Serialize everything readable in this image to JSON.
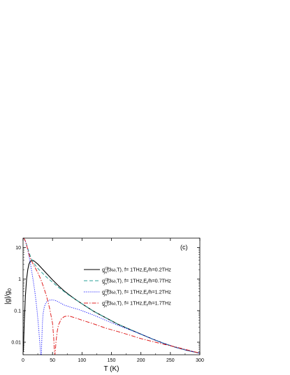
{
  "chart_data": {
    "type": "line",
    "panel_label": "(c)",
    "xlabel": "T (K)",
    "ylabel": "|g|/g",
    "ylabel_sub": "0",
    "xlim": [
      0,
      300
    ],
    "ylim": [
      0.004,
      20
    ],
    "yscale": "log",
    "grid": false,
    "legend_position": "right",
    "x_ticks": [
      0,
      50,
      100,
      150,
      200,
      250,
      300
    ],
    "x_tick_labels": [
      "0",
      "50",
      "100",
      "150",
      "200",
      "250",
      "300"
    ],
    "y_ticks": [
      0.01,
      0.1,
      1,
      10
    ],
    "y_tick_labels": [
      "0.01",
      "0.1",
      "1",
      "10"
    ],
    "series": [
      {
        "name": "g_yx^(3)(3ω,T), f= 1THz,E_f/h=0.2THz",
        "legend": {
          "g": "g",
          "sup": "(3)",
          "sub": "yx",
          "arg": "(3ω,T), f= 1THz,E",
          "sub2": "f",
          "tail": "/h=0.2THz"
        },
        "color": "#000000",
        "dash": "",
        "x": [
          0.5,
          2,
          4,
          6,
          8,
          10,
          12,
          14,
          16,
          18,
          20,
          25,
          30,
          40,
          50,
          60,
          70,
          80,
          90,
          100,
          120,
          140,
          160,
          180,
          200,
          220,
          240,
          260,
          280,
          300
        ],
        "y": [
          0.005,
          0.04,
          0.3,
          1.0,
          2.0,
          3.0,
          3.6,
          3.9,
          3.95,
          3.85,
          3.6,
          3.0,
          2.4,
          1.5,
          0.95,
          0.62,
          0.42,
          0.3,
          0.22,
          0.165,
          0.095,
          0.06,
          0.038,
          0.026,
          0.018,
          0.0125,
          0.009,
          0.0068,
          0.0054,
          0.0045
        ]
      },
      {
        "name": "g_yx^(3)(3ω,T), f= 1THz,E_f/h=0.7THz",
        "legend": {
          "g": "g",
          "sup": "(3)",
          "sub": "yx",
          "arg": "(3ω,T), f= 1THz,E",
          "sub2": "f",
          "tail": "/h=0.7THz"
        },
        "color": "#2aa198",
        "dash": "5,3",
        "x": [
          0.5,
          2,
          4,
          6,
          8,
          10,
          12,
          14,
          16,
          18,
          20,
          25,
          30,
          40,
          50,
          60,
          70,
          80,
          90,
          100,
          120,
          140,
          160,
          180,
          200,
          220,
          240,
          260,
          280,
          300
        ],
        "y": [
          20,
          19,
          16,
          12.5,
          9.5,
          7.2,
          5.6,
          4.5,
          3.8,
          3.3,
          2.9,
          2.2,
          1.75,
          1.15,
          0.8,
          0.55,
          0.4,
          0.29,
          0.22,
          0.165,
          0.095,
          0.06,
          0.038,
          0.026,
          0.018,
          0.0125,
          0.009,
          0.0068,
          0.0054,
          0.0045
        ]
      },
      {
        "name": "g_yx^(3)(3ω,T), f= 1THz,E_f/h=1.2THz",
        "legend": {
          "g": "g",
          "sup": "(3)",
          "sub": "yx",
          "arg": "(3ω,T), f= 1THz,E",
          "sub2": "f",
          "tail": "/h=1.2THz"
        },
        "color": "#1a1aff",
        "dash": "1.2,1.6",
        "x": [
          0.5,
          2,
          4,
          6,
          8,
          10,
          12,
          14,
          16,
          18,
          20,
          22,
          24,
          26,
          28,
          30,
          31,
          32,
          33,
          34,
          36,
          38,
          40,
          45,
          50,
          55,
          60,
          70,
          80,
          90,
          100,
          120,
          140,
          160,
          180,
          200,
          220,
          240,
          260,
          280,
          300
        ],
        "y": [
          20,
          19,
          16,
          12,
          8.5,
          5.5,
          3.5,
          2.1,
          1.25,
          0.72,
          0.4,
          0.2,
          0.09,
          0.035,
          0.012,
          0.004,
          0.004,
          0.015,
          0.045,
          0.08,
          0.13,
          0.165,
          0.19,
          0.215,
          0.22,
          0.21,
          0.19,
          0.15,
          0.13,
          0.115,
          0.1,
          0.072,
          0.05,
          0.035,
          0.025,
          0.018,
          0.0125,
          0.009,
          0.0068,
          0.0054,
          0.0045
        ]
      },
      {
        "name": "g_yx^(3)(3ω,T), f= 1THz,E_f/h=1.7THz",
        "legend": {
          "g": "g",
          "sup": "(3)",
          "sub": "yx",
          "arg": "(3ω,T), f= 1THz,E",
          "sub2": "f",
          "tail": "/h=1.7THz"
        },
        "color": "#e02020",
        "dash": "6,2,1.5,2",
        "x": [
          0.5,
          2,
          4,
          6,
          8,
          10,
          12,
          14,
          16,
          18,
          20,
          25,
          30,
          35,
          40,
          45,
          50,
          52,
          53,
          54,
          55,
          56,
          58,
          60,
          65,
          70,
          75,
          80,
          90,
          100,
          120,
          140,
          160,
          180,
          200,
          220,
          240,
          260,
          280,
          300
        ],
        "y": [
          20,
          19,
          16,
          12,
          8.5,
          6.2,
          4.8,
          3.9,
          3.3,
          2.8,
          2.4,
          1.6,
          1.0,
          0.55,
          0.28,
          0.12,
          0.04,
          0.014,
          0.006,
          0.004,
          0.006,
          0.011,
          0.022,
          0.035,
          0.055,
          0.065,
          0.068,
          0.066,
          0.058,
          0.05,
          0.038,
          0.028,
          0.022,
          0.017,
          0.013,
          0.0105,
          0.0085,
          0.007,
          0.0056,
          0.0045
        ]
      }
    ]
  }
}
